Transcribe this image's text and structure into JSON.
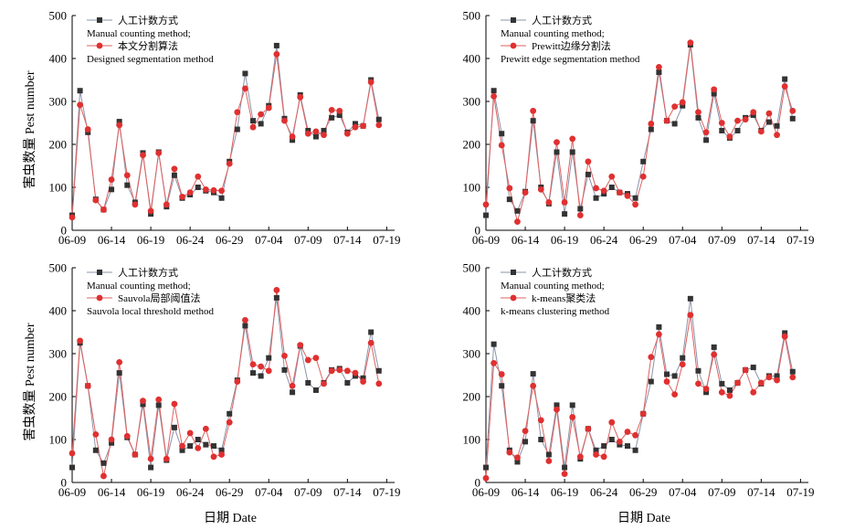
{
  "colors": {
    "manual": "#333333",
    "method": "#e03030",
    "manual_line": "#8a94a8",
    "method_line": "#e06060"
  },
  "shared": {
    "xlabel": "日期 Date",
    "ylabel": "害虫数量 Pest number",
    "x_ticks": [
      "06-09",
      "06-14",
      "06-19",
      "06-24",
      "06-29",
      "07-04",
      "07-09",
      "07-14",
      "07-19"
    ],
    "y_ticks": [
      "0",
      "100",
      "200",
      "300",
      "400",
      "500"
    ],
    "ylim": [
      0,
      500
    ],
    "legend_manual_cn": "人工计数方式",
    "legend_manual_en": "Manual counting method;"
  },
  "chart_data": [
    {
      "type": "line",
      "legend_method_cn": "本文分割算法",
      "legend_method_en": "Designed segmentation method",
      "xlim": [
        0,
        41
      ],
      "series": [
        {
          "name": "人工计数方式 Manual counting method",
          "values": [
            35,
            325,
            228,
            72,
            48,
            95,
            253,
            105,
            65,
            180,
            38,
            182,
            55,
            128,
            75,
            83,
            100,
            92,
            88,
            75,
            160,
            235,
            365,
            255,
            248,
            290,
            430,
            260,
            210,
            315,
            232,
            218,
            232,
            262,
            268,
            228,
            248,
            243,
            350,
            258
          ]
        },
        {
          "name": "本文分割算法 Designed segmentation method",
          "values": [
            30,
            292,
            235,
            70,
            48,
            118,
            245,
            128,
            60,
            175,
            45,
            180,
            60,
            143,
            78,
            88,
            125,
            95,
            93,
            92,
            155,
            275,
            330,
            240,
            270,
            285,
            410,
            255,
            218,
            310,
            225,
            230,
            222,
            280,
            278,
            225,
            240,
            243,
            345,
            245
          ]
        }
      ]
    },
    {
      "type": "line",
      "legend_method_cn": "Prewitt边缘分割法",
      "legend_method_en": "Prewitt edge segmentation method",
      "xlim": [
        0,
        41
      ],
      "series": [
        {
          "name": "人工计数方式 Manual counting method",
          "values": [
            35,
            325,
            225,
            72,
            45,
            90,
            255,
            100,
            62,
            182,
            38,
            182,
            50,
            130,
            75,
            85,
            100,
            88,
            85,
            75,
            160,
            235,
            368,
            255,
            248,
            290,
            432,
            262,
            210,
            318,
            232,
            215,
            232,
            262,
            268,
            232,
            252,
            243,
            352,
            260
          ]
        },
        {
          "name": "Prewitt边缘分割法 Prewitt edge segmentation method",
          "values": [
            60,
            312,
            198,
            98,
            20,
            88,
            278,
            95,
            65,
            205,
            65,
            213,
            35,
            160,
            98,
            92,
            125,
            88,
            80,
            60,
            125,
            248,
            380,
            255,
            288,
            298,
            437,
            275,
            228,
            328,
            250,
            218,
            255,
            258,
            275,
            230,
            272,
            222,
            335,
            278
          ]
        }
      ]
    },
    {
      "type": "line",
      "legend_method_cn": "Sauvola局部阈值法",
      "legend_method_en": "Sauvola local threshold method",
      "xlim": [
        0,
        41
      ],
      "series": [
        {
          "name": "人工计数方式 Manual counting method",
          "values": [
            35,
            325,
            225,
            75,
            45,
            92,
            255,
            105,
            65,
            182,
            35,
            180,
            52,
            128,
            75,
            85,
            100,
            88,
            85,
            75,
            160,
            238,
            365,
            255,
            248,
            290,
            430,
            262,
            210,
            318,
            232,
            215,
            232,
            262,
            265,
            232,
            248,
            243,
            350,
            260
          ]
        },
        {
          "name": "Sauvola局部阈值法 Sauvola local threshold method",
          "values": [
            68,
            330,
            225,
            112,
            15,
            100,
            280,
            108,
            65,
            190,
            55,
            193,
            55,
            183,
            85,
            115,
            80,
            125,
            60,
            65,
            140,
            235,
            378,
            275,
            270,
            260,
            448,
            295,
            225,
            320,
            285,
            290,
            230,
            260,
            262,
            260,
            255,
            235,
            325,
            230
          ]
        }
      ]
    },
    {
      "type": "line",
      "legend_method_cn": "k-means聚类法",
      "legend_method_en": "k-means clustering method",
      "xlim": [
        0,
        41
      ],
      "series": [
        {
          "name": "人工计数方式 Manual counting method",
          "values": [
            35,
            322,
            225,
            75,
            48,
            95,
            253,
            100,
            65,
            180,
            35,
            180,
            55,
            125,
            75,
            85,
            100,
            88,
            85,
            75,
            160,
            235,
            362,
            252,
            248,
            290,
            428,
            260,
            210,
            315,
            230,
            215,
            232,
            262,
            268,
            230,
            248,
            248,
            348,
            258
          ]
        },
        {
          "name": "k-means聚类法 k-means clustering method",
          "values": [
            10,
            278,
            252,
            70,
            58,
            120,
            225,
            145,
            50,
            170,
            20,
            152,
            60,
            125,
            65,
            60,
            140,
            95,
            118,
            110,
            160,
            292,
            345,
            235,
            205,
            275,
            390,
            230,
            218,
            298,
            210,
            202,
            232,
            262,
            210,
            232,
            245,
            238,
            340,
            245
          ]
        }
      ]
    }
  ]
}
